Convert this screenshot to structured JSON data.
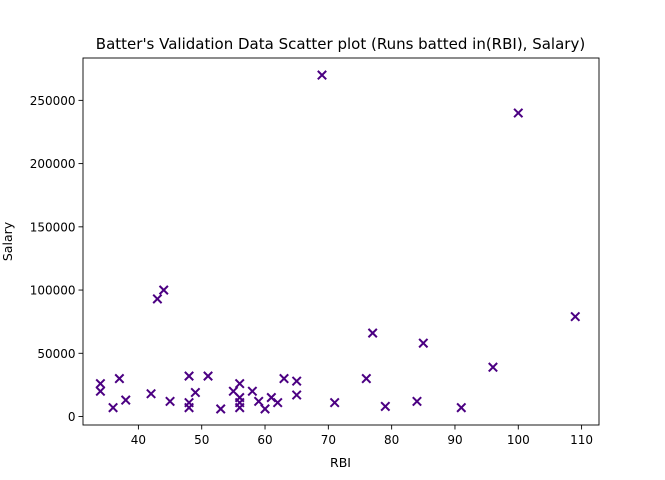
{
  "chart_data": {
    "type": "scatter",
    "title": "Batter's Validation Data Scatter plot (Runs batted in(RBI), Salary)",
    "xlabel": "RBI",
    "ylabel": "Salary",
    "xlim": [
      31.25,
      112.75
    ],
    "ylim": [
      -6700,
      283500
    ],
    "xticks": [
      40,
      50,
      60,
      70,
      80,
      90,
      100,
      110
    ],
    "yticks": [
      0,
      50000,
      100000,
      150000,
      200000,
      250000
    ],
    "grid": false,
    "marker": "x",
    "color": "#4b0082",
    "points": [
      {
        "x": 34,
        "y": 26000
      },
      {
        "x": 34,
        "y": 20000
      },
      {
        "x": 36,
        "y": 7000
      },
      {
        "x": 37,
        "y": 30000
      },
      {
        "x": 38,
        "y": 13000
      },
      {
        "x": 42,
        "y": 18000
      },
      {
        "x": 43,
        "y": 93000
      },
      {
        "x": 44,
        "y": 100000
      },
      {
        "x": 45,
        "y": 12000
      },
      {
        "x": 48,
        "y": 32000
      },
      {
        "x": 48,
        "y": 11000
      },
      {
        "x": 48,
        "y": 7000
      },
      {
        "x": 49,
        "y": 19000
      },
      {
        "x": 51,
        "y": 32000
      },
      {
        "x": 53,
        "y": 6000
      },
      {
        "x": 55,
        "y": 20000
      },
      {
        "x": 56,
        "y": 26000
      },
      {
        "x": 56,
        "y": 15000
      },
      {
        "x": 56,
        "y": 11000
      },
      {
        "x": 56,
        "y": 7000
      },
      {
        "x": 58,
        "y": 20000
      },
      {
        "x": 59,
        "y": 12000
      },
      {
        "x": 60,
        "y": 6000
      },
      {
        "x": 61,
        "y": 15000
      },
      {
        "x": 62,
        "y": 11000
      },
      {
        "x": 63,
        "y": 30000
      },
      {
        "x": 65,
        "y": 28000
      },
      {
        "x": 65,
        "y": 17000
      },
      {
        "x": 69,
        "y": 270000
      },
      {
        "x": 71,
        "y": 11000
      },
      {
        "x": 76,
        "y": 30000
      },
      {
        "x": 77,
        "y": 66000
      },
      {
        "x": 79,
        "y": 8000
      },
      {
        "x": 84,
        "y": 12000
      },
      {
        "x": 85,
        "y": 58000
      },
      {
        "x": 91,
        "y": 7000
      },
      {
        "x": 96,
        "y": 39000
      },
      {
        "x": 100,
        "y": 240000
      },
      {
        "x": 109,
        "y": 79000
      }
    ]
  }
}
